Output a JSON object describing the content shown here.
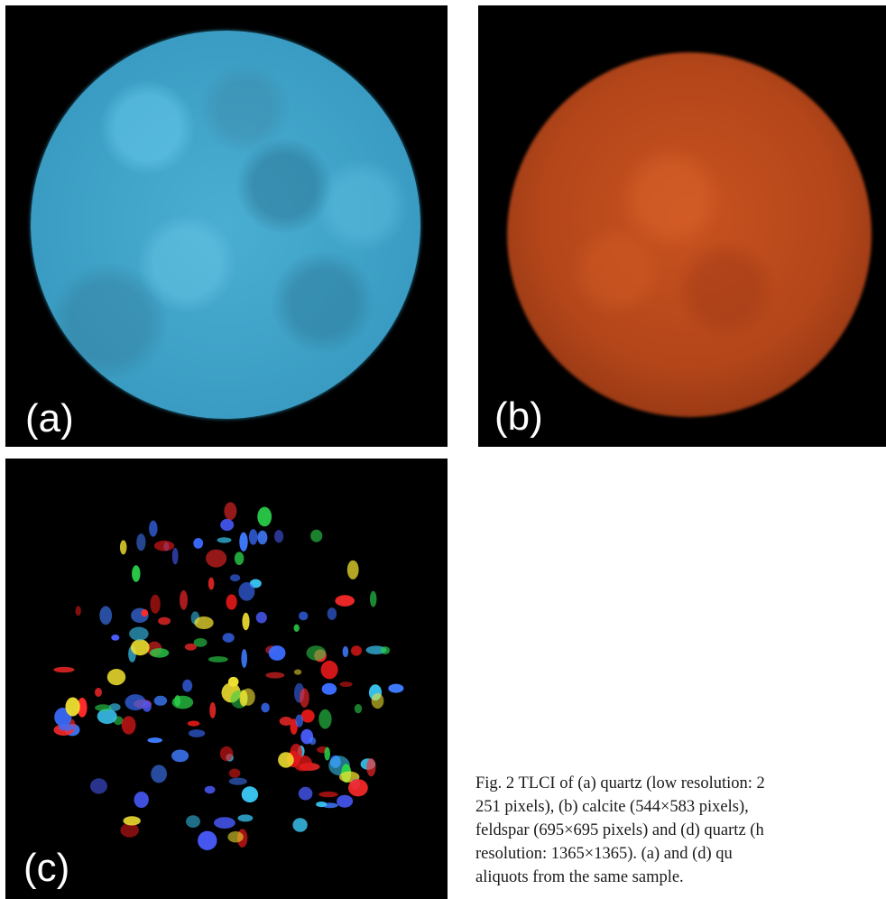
{
  "figure": {
    "panels": [
      {
        "id": "a",
        "label": "(a)",
        "color": "#3a9cc2"
      },
      {
        "id": "b",
        "label": "(b)",
        "color": "#b4461a"
      },
      {
        "id": "c",
        "label": "(c)",
        "color": "#000000"
      }
    ],
    "caption_lines": [
      "Fig. 2    TLCI of (a) quartz (low resolution: 2",
      "251  pixels),  (b)  calcite  (544×583  pixels),",
      "feldspar  (695×695  pixels)  and  (d)  quartz  (h",
      "resolution:  1365×1365).  (a)  and  (d)  qu",
      "aliquots from the same sample."
    ]
  }
}
